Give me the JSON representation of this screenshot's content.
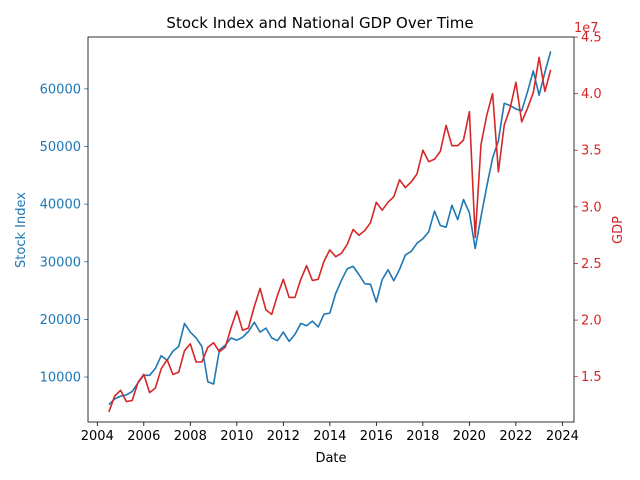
{
  "chart_data": {
    "type": "line",
    "title": "Stock Index and National GDP Over Time",
    "xlabel": "Date",
    "ylabel_left": "Stock Index",
    "ylabel_right": "GDP",
    "right_offset_label": "1e7",
    "x_ticks": [
      "2004",
      "2006",
      "2008",
      "2010",
      "2012",
      "2014",
      "2016",
      "2018",
      "2020",
      "2022",
      "2024"
    ],
    "x_tick_years": [
      2004,
      2006,
      2008,
      2010,
      2012,
      2014,
      2016,
      2018,
      2020,
      2022,
      2024
    ],
    "y_left_ticks": [
      "10000",
      "20000",
      "30000",
      "40000",
      "50000",
      "60000"
    ],
    "y_left_tick_values": [
      10000,
      20000,
      30000,
      40000,
      50000,
      60000
    ],
    "y_right_ticks": [
      "1.5",
      "2.0",
      "2.5",
      "3.0",
      "3.5",
      "4.0",
      "4.5"
    ],
    "y_right_tick_values": [
      1.5,
      2.0,
      2.5,
      3.0,
      3.5,
      4.0,
      4.5
    ],
    "xlim": [
      2003.6,
      2024.5
    ],
    "ylim_left": [
      2200,
      69000
    ],
    "ylim_right": [
      1.1,
      4.5
    ],
    "grid": false,
    "colors": {
      "left": "#1f77b4",
      "right": "#d62728"
    },
    "series": [
      {
        "name": "Stock Index",
        "axis": "left",
        "color": "#1f77b4",
        "x": [
          2004.5,
          2004.75,
          2005.0,
          2005.25,
          2005.5,
          2005.75,
          2006.0,
          2006.25,
          2006.5,
          2006.75,
          2007.0,
          2007.25,
          2007.5,
          2007.75,
          2008.0,
          2008.25,
          2008.5,
          2008.75,
          2009.0,
          2009.25,
          2009.5,
          2009.75,
          2010.0,
          2010.25,
          2010.5,
          2010.75,
          2011.0,
          2011.25,
          2011.5,
          2011.75,
          2012.0,
          2012.25,
          2012.5,
          2012.75,
          2013.0,
          2013.25,
          2013.5,
          2013.75,
          2014.0,
          2014.25,
          2014.5,
          2014.75,
          2015.0,
          2015.25,
          2015.5,
          2015.75,
          2016.0,
          2016.25,
          2016.5,
          2016.75,
          2017.0,
          2017.25,
          2017.5,
          2017.75,
          2018.0,
          2018.25,
          2018.5,
          2018.75,
          2019.0,
          2019.25,
          2019.5,
          2019.75,
          2020.0,
          2020.25,
          2020.5,
          2020.75,
          2021.0,
          2021.25,
          2021.5,
          2021.75,
          2022.0,
          2022.25,
          2022.5,
          2022.75,
          2023.0,
          2023.25,
          2023.5
        ],
        "y": [
          5200,
          6200,
          6700,
          6900,
          7500,
          9000,
          10300,
          10300,
          11500,
          13700,
          12900,
          14500,
          15300,
          19300,
          17800,
          16800,
          15300,
          9200,
          8800,
          14700,
          15500,
          16800,
          16400,
          16900,
          17900,
          19500,
          17800,
          18500,
          16800,
          16300,
          17800,
          16200,
          17400,
          19300,
          18900,
          19700,
          18700,
          20900,
          21100,
          24500,
          26800,
          28800,
          29200,
          27800,
          26200,
          26100,
          23000,
          26900,
          28600,
          26700,
          28700,
          31200,
          31800,
          33200,
          34000,
          35200,
          38800,
          36300,
          36000,
          39800,
          37300,
          40800,
          38500,
          32300,
          37800,
          43100,
          48000,
          51000,
          57500,
          57100,
          56500,
          56200,
          59500,
          63100,
          58900,
          62900,
          66500
        ]
      },
      {
        "name": "GDP",
        "axis": "right",
        "color": "#d62728",
        "x": [
          2004.5,
          2004.75,
          2005.0,
          2005.25,
          2005.5,
          2005.75,
          2006.0,
          2006.25,
          2006.5,
          2006.75,
          2007.0,
          2007.25,
          2007.5,
          2007.75,
          2008.0,
          2008.25,
          2008.5,
          2008.75,
          2009.0,
          2009.25,
          2009.5,
          2009.75,
          2010.0,
          2010.25,
          2010.5,
          2010.75,
          2011.0,
          2011.25,
          2011.5,
          2011.75,
          2012.0,
          2012.25,
          2012.5,
          2012.75,
          2013.0,
          2013.25,
          2013.5,
          2013.75,
          2014.0,
          2014.25,
          2014.5,
          2014.75,
          2015.0,
          2015.25,
          2015.5,
          2015.75,
          2016.0,
          2016.25,
          2016.5,
          2016.75,
          2017.0,
          2017.25,
          2017.5,
          2017.75,
          2018.0,
          2018.25,
          2018.5,
          2018.75,
          2019.0,
          2019.25,
          2019.5,
          2019.75,
          2020.0,
          2020.25,
          2020.5,
          2020.75,
          2021.0,
          2021.25,
          2021.5,
          2021.75,
          2022.0,
          2022.25,
          2022.5,
          2022.75,
          2023.0,
          2023.25,
          2023.5
        ],
        "y": [
          1.19,
          1.33,
          1.38,
          1.28,
          1.29,
          1.45,
          1.52,
          1.36,
          1.4,
          1.57,
          1.65,
          1.52,
          1.54,
          1.73,
          1.79,
          1.63,
          1.63,
          1.76,
          1.8,
          1.72,
          1.76,
          1.93,
          2.08,
          1.91,
          1.93,
          2.12,
          2.28,
          2.09,
          2.05,
          2.22,
          2.36,
          2.2,
          2.2,
          2.36,
          2.48,
          2.35,
          2.36,
          2.52,
          2.62,
          2.56,
          2.59,
          2.67,
          2.8,
          2.75,
          2.79,
          2.86,
          3.04,
          2.97,
          3.04,
          3.09,
          3.24,
          3.17,
          3.22,
          3.29,
          3.5,
          3.4,
          3.42,
          3.49,
          3.72,
          3.54,
          3.54,
          3.59,
          3.84,
          2.73,
          3.55,
          3.81,
          4.0,
          3.31,
          3.72,
          3.87,
          4.1,
          3.75,
          3.87,
          4.01,
          4.32,
          4.02,
          4.21
        ]
      }
    ]
  }
}
